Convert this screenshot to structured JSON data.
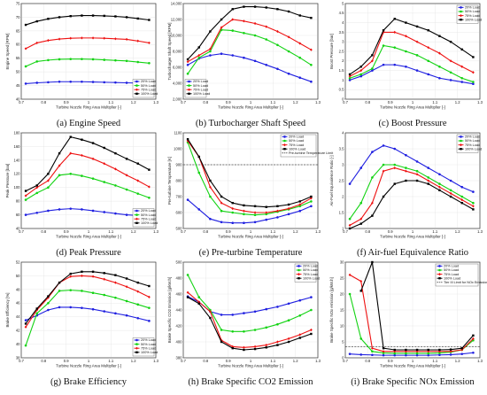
{
  "legend_labels": [
    "20% Load",
    "50% Load",
    "75% Load",
    "100% Load"
  ],
  "colors": [
    "#1f1fe0",
    "#13d313",
    "#ee1111",
    "#000000"
  ],
  "chart_data": [
    {
      "type": "line",
      "caption": "(a) Engine Speed",
      "xlabel": "Turbine Nozzle Ring Area Multiplier [-]",
      "ylabel": "Engine Speed [RPM]",
      "xlim": [
        0.7,
        1.3
      ],
      "ylim": [
        40,
        75
      ],
      "xticks": [
        "0.7",
        "0.8",
        "0.9",
        "1",
        "1.1",
        "1.2",
        "1.3"
      ],
      "yticks": [
        "40",
        "45",
        "50",
        "55",
        "60",
        "65",
        "70",
        "75"
      ],
      "x": [
        0.72,
        0.77,
        0.82,
        0.87,
        0.92,
        0.97,
        1.02,
        1.07,
        1.12,
        1.17,
        1.22,
        1.27
      ],
      "series": [
        {
          "name": "20% Load",
          "values": [
            45.7,
            46.0,
            46.2,
            46.4,
            46.4,
            46.4,
            46.3,
            46.2,
            46.1,
            46.0,
            45.9,
            45.8
          ]
        },
        {
          "name": "50% Load",
          "values": [
            52.0,
            53.8,
            54.3,
            54.6,
            54.7,
            54.7,
            54.6,
            54.4,
            54.2,
            54.0,
            53.6,
            53.2
          ]
        },
        {
          "name": "75% Load",
          "values": [
            58.5,
            60.6,
            61.5,
            62.0,
            62.3,
            62.4,
            62.4,
            62.3,
            62.1,
            61.9,
            61.3,
            60.6
          ]
        },
        {
          "name": "100% Load",
          "values": [
            67.2,
            68.5,
            69.4,
            70.0,
            70.4,
            70.6,
            70.6,
            70.5,
            70.3,
            70.0,
            69.5,
            69.0
          ]
        }
      ],
      "legend_position": "bottom-right"
    },
    {
      "type": "line",
      "caption": "(b) Turbocharger Shaft Speed",
      "xlabel": "Turbine Nozzle Ring Area Multiplier [-]",
      "ylabel": "Turbocharger Shaft Speed [RPM]",
      "xlim": [
        0.7,
        1.3
      ],
      "ylim": [
        2000,
        14000
      ],
      "xticks": [
        "0.7",
        "0.8",
        "0.9",
        "1",
        "1.1",
        "1.2",
        "1.3"
      ],
      "yticks": [
        "2,000",
        "4,000",
        "6,000",
        "8,000",
        "10,000",
        "12,000",
        "14,000"
      ],
      "x": [
        0.72,
        0.77,
        0.82,
        0.87,
        0.92,
        0.97,
        1.02,
        1.07,
        1.12,
        1.17,
        1.22,
        1.27
      ],
      "series": [
        {
          "name": "20% Load",
          "values": [
            6300,
            7100,
            7500,
            7700,
            7500,
            7200,
            6800,
            6300,
            5800,
            5200,
            4700,
            4200
          ]
        },
        {
          "name": "50% Load",
          "values": [
            5200,
            7200,
            8000,
            10700,
            10600,
            10300,
            10000,
            9500,
            8800,
            8000,
            7200,
            6300
          ]
        },
        {
          "name": "75% Load",
          "values": [
            6700,
            7500,
            8300,
            11000,
            12000,
            11800,
            11500,
            11100,
            10500,
            9800,
            9000,
            8200
          ]
        },
        {
          "name": "100% Load",
          "values": [
            7000,
            8500,
            10500,
            12000,
            13300,
            13600,
            13600,
            13500,
            13300,
            13000,
            12500,
            12200
          ]
        }
      ],
      "legend_position": "bottom-left"
    },
    {
      "type": "line",
      "caption": "(c) Boost Pressure",
      "xlabel": "Turbine Nozzle Ring Area Multiplier [-]",
      "ylabel": "Boost Pressure [bar]",
      "xlim": [
        0.7,
        1.3
      ],
      "ylim": [
        0,
        5
      ],
      "xticks": [
        "0.7",
        "0.8",
        "0.9",
        "1",
        "1.1",
        "1.2",
        "1.3"
      ],
      "yticks": [
        "0",
        "0.5",
        "1",
        "1.5",
        "2",
        "2.5",
        "3",
        "3.5",
        "4",
        "4.5",
        "5"
      ],
      "x": [
        0.72,
        0.77,
        0.82,
        0.87,
        0.92,
        0.97,
        1.02,
        1.07,
        1.12,
        1.17,
        1.22,
        1.27
      ],
      "series": [
        {
          "name": "20% Load",
          "values": [
            1.0,
            1.2,
            1.5,
            1.8,
            1.8,
            1.7,
            1.5,
            1.3,
            1.1,
            1.0,
            0.9,
            0.8
          ]
        },
        {
          "name": "50% Load",
          "values": [
            1.1,
            1.3,
            1.6,
            2.8,
            2.7,
            2.5,
            2.3,
            2.0,
            1.7,
            1.4,
            1.1,
            0.9
          ]
        },
        {
          "name": "75% Load",
          "values": [
            1.2,
            1.5,
            2.0,
            3.5,
            3.5,
            3.3,
            3.0,
            2.7,
            2.4,
            2.0,
            1.7,
            1.4
          ]
        },
        {
          "name": "100% Load",
          "values": [
            1.3,
            1.7,
            2.3,
            3.6,
            4.2,
            4.0,
            3.8,
            3.6,
            3.3,
            3.0,
            2.6,
            2.2
          ]
        }
      ],
      "legend_position": "top-right"
    },
    {
      "type": "line",
      "caption": "(d) Peak Pressure",
      "xlabel": "Turbine Nozzle Ring Area Multiplier [-]",
      "ylabel": "Peak Pressure [bar]",
      "xlim": [
        0.7,
        1.3
      ],
      "ylim": [
        40,
        180
      ],
      "xticks": [
        "0.7",
        "0.8",
        "0.9",
        "1",
        "1.1",
        "1.2",
        "1.3"
      ],
      "yticks": [
        "40",
        "60",
        "80",
        "100",
        "120",
        "140",
        "160",
        "180"
      ],
      "x": [
        0.72,
        0.77,
        0.82,
        0.87,
        0.92,
        0.97,
        1.02,
        1.07,
        1.12,
        1.17,
        1.22,
        1.27
      ],
      "series": [
        {
          "name": "20% Load",
          "values": [
            60,
            63,
            66,
            68,
            69,
            68,
            66,
            64,
            62,
            60,
            59,
            58
          ]
        },
        {
          "name": "50% Load",
          "values": [
            82,
            92,
            100,
            118,
            120,
            117,
            113,
            108,
            103,
            97,
            91,
            85
          ]
        },
        {
          "name": "75% Load",
          "values": [
            88,
            100,
            110,
            132,
            150,
            147,
            142,
            135,
            127,
            118,
            110,
            101
          ]
        },
        {
          "name": "100% Load",
          "values": [
            95,
            103,
            120,
            150,
            174,
            170,
            165,
            158,
            150,
            142,
            135,
            126
          ]
        }
      ],
      "legend_position": "bottom-right"
    },
    {
      "type": "line",
      "caption": "(e) Pre-turbine Temperature",
      "xlabel": "Turbine Nozzle Ring Area Multiplier [-]",
      "ylabel": "Pre-turbine Temperature [K]",
      "xlim": [
        0.7,
        1.3
      ],
      "ylim": [
        500,
        1100
      ],
      "xticks": [
        "0.7",
        "0.8",
        "0.9",
        "1",
        "1.1",
        "1.2",
        "1.3"
      ],
      "yticks": [
        "500",
        "600",
        "700",
        "800",
        "900",
        "1000",
        "1100"
      ],
      "x": [
        0.72,
        0.77,
        0.82,
        0.87,
        0.92,
        0.97,
        1.02,
        1.07,
        1.12,
        1.17,
        1.22,
        1.27
      ],
      "series": [
        {
          "name": "20% Load",
          "values": [
            680,
            620,
            560,
            540,
            535,
            535,
            540,
            555,
            570,
            590,
            610,
            640
          ]
        },
        {
          "name": "50% Load",
          "values": [
            1040,
            850,
            700,
            610,
            600,
            590,
            585,
            590,
            605,
            620,
            640,
            670
          ]
        },
        {
          "name": "75% Load",
          "values": [
            1050,
            950,
            760,
            660,
            625,
            610,
            600,
            600,
            610,
            625,
            650,
            690
          ]
        },
        {
          "name": "100% Load",
          "values": [
            1060,
            950,
            800,
            700,
            660,
            645,
            640,
            635,
            640,
            650,
            670,
            700
          ]
        }
      ],
      "reference_line": {
        "y": 900,
        "label": "Pre-turbine Temperature Limit"
      },
      "legend_position": "top-right"
    },
    {
      "type": "line",
      "caption": "(f) Air-fuel Equivalence Ratio",
      "xlabel": "Turbine Nozzle Ring Area Multiplier [-]",
      "ylabel": "Air-Fuel Equivalence Ratio [-]",
      "xlim": [
        0.7,
        1.3
      ],
      "ylim": [
        1,
        4
      ],
      "xticks": [
        "0.7",
        "0.8",
        "0.9",
        "1",
        "1.1",
        "1.2",
        "1.3"
      ],
      "yticks": [
        "1",
        "1.5",
        "2",
        "2.5",
        "3",
        "3.5",
        "4"
      ],
      "x": [
        0.72,
        0.77,
        0.82,
        0.87,
        0.92,
        0.97,
        1.02,
        1.07,
        1.12,
        1.17,
        1.22,
        1.27
      ],
      "series": [
        {
          "name": "20% Load",
          "values": [
            2.4,
            2.9,
            3.4,
            3.6,
            3.5,
            3.3,
            3.1,
            2.9,
            2.7,
            2.5,
            2.3,
            2.15
          ]
        },
        {
          "name": "50% Load",
          "values": [
            1.3,
            1.8,
            2.6,
            3.0,
            3.0,
            2.9,
            2.8,
            2.6,
            2.4,
            2.2,
            2.0,
            1.8
          ]
        },
        {
          "name": "75% Load",
          "values": [
            1.1,
            1.3,
            1.8,
            2.8,
            2.9,
            2.8,
            2.7,
            2.5,
            2.3,
            2.1,
            1.9,
            1.7
          ]
        },
        {
          "name": "100% Load",
          "values": [
            1.0,
            1.15,
            1.4,
            2.0,
            2.4,
            2.5,
            2.5,
            2.4,
            2.2,
            2.0,
            1.8,
            1.6
          ]
        }
      ],
      "legend_position": "top-right"
    },
    {
      "type": "line",
      "caption": "(g) Brake Efficiency",
      "xlabel": "Turbine Nozzle Ring Area Multiplier [-]",
      "ylabel": "Brake Efficiency [%]",
      "xlim": [
        0.7,
        1.3
      ],
      "ylim": [
        38,
        52
      ],
      "xticks": [
        "0.7",
        "0.8",
        "0.9",
        "1",
        "1.1",
        "1.2",
        "1.3"
      ],
      "yticks": [
        "38",
        "40",
        "42",
        "44",
        "46",
        "48",
        "50",
        "52"
      ],
      "x": [
        0.72,
        0.77,
        0.82,
        0.87,
        0.92,
        0.97,
        1.02,
        1.07,
        1.12,
        1.17,
        1.22,
        1.27
      ],
      "series": [
        {
          "name": "20% Load",
          "values": [
            43.5,
            44.2,
            45.0,
            45.4,
            45.4,
            45.3,
            45.1,
            44.8,
            44.5,
            44.2,
            43.8,
            43.4
          ]
        },
        {
          "name": "50% Load",
          "values": [
            39.8,
            44.5,
            46.0,
            47.8,
            47.9,
            47.8,
            47.5,
            47.2,
            46.8,
            46.3,
            45.8,
            45.3
          ]
        },
        {
          "name": "75% Load",
          "values": [
            42.5,
            45.0,
            46.8,
            49.0,
            49.9,
            50.0,
            49.9,
            49.5,
            49.0,
            48.4,
            47.7,
            46.9
          ]
        },
        {
          "name": "100% Load",
          "values": [
            43.0,
            45.2,
            47.0,
            49.0,
            50.3,
            50.6,
            50.6,
            50.4,
            50.1,
            49.6,
            49.0,
            48.5
          ]
        }
      ],
      "legend_position": "bottom-right"
    },
    {
      "type": "line",
      "caption": "(h) Brake Specific CO2 Emission",
      "xlabel": "Turbine Nozzle Ring Area Multiplier [-]",
      "ylabel": "Brake Specific CO2 Emission [g/kW.h]",
      "xlim": [
        0.7,
        1.3
      ],
      "ylim": [
        380,
        500
      ],
      "xticks": [
        "0.7",
        "0.8",
        "0.9",
        "1",
        "1.1",
        "1.2",
        "1.3"
      ],
      "yticks": [
        "380",
        "400",
        "420",
        "440",
        "460",
        "480",
        "500"
      ],
      "x": [
        0.72,
        0.77,
        0.82,
        0.87,
        0.92,
        0.97,
        1.02,
        1.07,
        1.12,
        1.17,
        1.22,
        1.27
      ],
      "series": [
        {
          "name": "20% Load",
          "values": [
            457,
            450,
            438,
            434,
            434,
            436,
            438,
            441,
            444,
            448,
            452,
            456
          ]
        },
        {
          "name": "50% Load",
          "values": [
            484,
            456,
            440,
            415,
            413,
            413,
            415,
            418,
            422,
            427,
            433,
            440
          ]
        },
        {
          "name": "75% Load",
          "values": [
            462,
            450,
            438,
            402,
            394,
            393,
            394,
            396,
            400,
            404,
            409,
            415
          ]
        },
        {
          "name": "100% Load",
          "values": [
            456,
            448,
            430,
            400,
            392,
            390,
            391,
            393,
            396,
            400,
            405,
            410
          ]
        }
      ],
      "legend_position": "top-right"
    },
    {
      "type": "line",
      "caption": "(i) Brake Specific NOx Emission",
      "xlabel": "Turbine Nozzle Ring Area Multiplier [-]",
      "ylabel": "Brake Specific NOx emission [g/kW.h]",
      "xlim": [
        0.7,
        1.3
      ],
      "ylim": [
        0,
        30
      ],
      "xticks": [
        "0.7",
        "0.8",
        "0.9",
        "1",
        "1.1",
        "1.2",
        "1.3"
      ],
      "yticks": [
        "0",
        "5",
        "10",
        "15",
        "20",
        "25",
        "30"
      ],
      "x": [
        0.72,
        0.77,
        0.82,
        0.87,
        0.92,
        0.97,
        1.02,
        1.07,
        1.12,
        1.17,
        1.22,
        1.27
      ],
      "series": [
        {
          "name": "20% Load",
          "values": [
            1.2,
            1.0,
            0.9,
            0.8,
            0.8,
            0.8,
            0.8,
            0.8,
            0.9,
            1.0,
            1.2,
            1.6
          ]
        },
        {
          "name": "50% Load",
          "values": [
            20,
            6,
            2,
            1.5,
            1.4,
            1.4,
            1.4,
            1.4,
            1.5,
            1.8,
            2.5,
            5.5
          ]
        },
        {
          "name": "75% Load",
          "values": [
            26,
            24,
            3,
            2,
            2,
            2,
            2,
            2,
            2,
            2,
            2.5,
            6.0
          ]
        },
        {
          "name": "100% Load",
          "values": [
            null,
            21,
            30,
            3,
            2.5,
            2.5,
            2.5,
            2.5,
            2.5,
            2.6,
            3,
            7.0
          ]
        }
      ],
      "reference_line": {
        "y": 3.4,
        "label": "Tier III Limit for NOx Emission"
      },
      "legend_position": "top-right"
    }
  ]
}
